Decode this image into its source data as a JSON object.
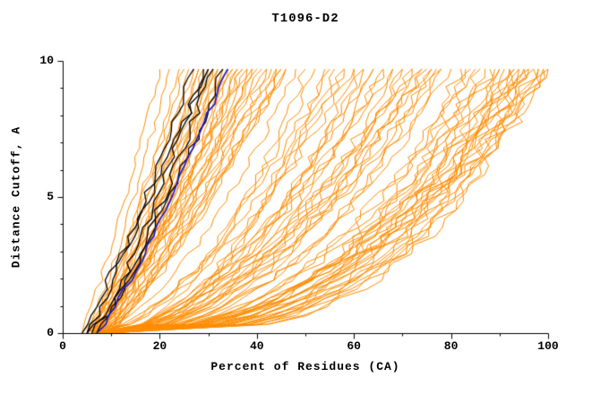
{
  "chart_data": {
    "type": "line",
    "title": "T1096-D2",
    "xlabel": "Percent of Residues (CA)",
    "ylabel": "Distance Cutoff, A",
    "xlim": [
      0,
      100
    ],
    "ylim": [
      0,
      10
    ],
    "xticks": [
      0,
      20,
      40,
      60,
      80,
      100
    ],
    "x_minor_step": 10,
    "yticks": [
      0,
      5,
      10
    ],
    "y_minor_step": 1,
    "y_curve_top": 9.7,
    "grid": false,
    "legend": "none",
    "axis_color": "#000000",
    "background_color": "#ffffff",
    "curve_format": [
      "x_percent_at_cutoff_0",
      "x_percent_at_cutoff_9.7",
      "shape_exponent"
    ],
    "groups": [
      {
        "name": "server-models",
        "color": "#FF8C00",
        "line_width": 1,
        "jitter": 1.0,
        "curves": [
          [
            4,
            20,
            0.9
          ],
          [
            5,
            22,
            0.85
          ],
          [
            5,
            24,
            0.8
          ],
          [
            6,
            25,
            0.9
          ],
          [
            4,
            26,
            0.75
          ],
          [
            6,
            27,
            0.95
          ],
          [
            5,
            28,
            0.7
          ],
          [
            7,
            28,
            0.85
          ],
          [
            6,
            29,
            0.9
          ],
          [
            5,
            30,
            0.8
          ],
          [
            7,
            30,
            0.75
          ],
          [
            6,
            31,
            0.9
          ],
          [
            8,
            31,
            0.85
          ],
          [
            5,
            32,
            0.7
          ],
          [
            7,
            32,
            0.95
          ],
          [
            6,
            33,
            0.8
          ],
          [
            8,
            33,
            0.75
          ],
          [
            5,
            34,
            0.9
          ],
          [
            7,
            34,
            0.85
          ],
          [
            6,
            35,
            0.7
          ],
          [
            8,
            35,
            0.95
          ],
          [
            7,
            36,
            0.8
          ],
          [
            5,
            36,
            0.75
          ],
          [
            9,
            37,
            0.9
          ],
          [
            6,
            37,
            0.85
          ],
          [
            8,
            38,
            0.7
          ],
          [
            7,
            38,
            0.95
          ],
          [
            6,
            39,
            0.8
          ],
          [
            9,
            39,
            0.75
          ],
          [
            7,
            40,
            0.9
          ],
          [
            8,
            41,
            0.85
          ],
          [
            6,
            42,
            0.7
          ],
          [
            9,
            42,
            0.95
          ],
          [
            7,
            43,
            0.8
          ],
          [
            8,
            44,
            0.75
          ],
          [
            6,
            44,
            0.9
          ],
          [
            9,
            45,
            0.85
          ],
          [
            7,
            45,
            0.7
          ],
          [
            8,
            46,
            0.8
          ],
          [
            10,
            46,
            0.9
          ],
          [
            6,
            48,
            0.6
          ],
          [
            8,
            50,
            0.5
          ],
          [
            7,
            52,
            0.55
          ],
          [
            9,
            54,
            0.45
          ],
          [
            6,
            55,
            0.6
          ],
          [
            8,
            56,
            0.5
          ],
          [
            10,
            58,
            0.55
          ],
          [
            7,
            58,
            0.65
          ],
          [
            9,
            60,
            0.45
          ],
          [
            6,
            60,
            0.6
          ],
          [
            8,
            62,
            0.5
          ],
          [
            10,
            62,
            0.55
          ],
          [
            7,
            64,
            0.4
          ],
          [
            9,
            64,
            0.6
          ],
          [
            6,
            66,
            0.5
          ],
          [
            8,
            66,
            0.55
          ],
          [
            10,
            68,
            0.45
          ],
          [
            7,
            68,
            0.6
          ],
          [
            9,
            70,
            0.5
          ],
          [
            8,
            70,
            0.4
          ],
          [
            6,
            72,
            0.55
          ],
          [
            10,
            72,
            0.6
          ],
          [
            7,
            74,
            0.45
          ],
          [
            9,
            74,
            0.5
          ],
          [
            8,
            75,
            0.55
          ],
          [
            6,
            76,
            0.4
          ],
          [
            10,
            76,
            0.6
          ],
          [
            7,
            77,
            0.5
          ],
          [
            9,
            78,
            0.45
          ],
          [
            8,
            78,
            0.55
          ],
          [
            7,
            80,
            0.45
          ],
          [
            9,
            82,
            0.35
          ],
          [
            6,
            83,
            0.4
          ],
          [
            8,
            84,
            0.3
          ],
          [
            10,
            85,
            0.45
          ],
          [
            7,
            86,
            0.35
          ],
          [
            9,
            87,
            0.4
          ],
          [
            6,
            88,
            0.3
          ],
          [
            8,
            89,
            0.45
          ],
          [
            10,
            90,
            0.35
          ],
          [
            7,
            90,
            0.4
          ],
          [
            9,
            91,
            0.28
          ],
          [
            6,
            92,
            0.42
          ],
          [
            8,
            92,
            0.32
          ],
          [
            10,
            93,
            0.45
          ],
          [
            7,
            93,
            0.3
          ],
          [
            9,
            94,
            0.4
          ],
          [
            6,
            94,
            0.35
          ],
          [
            8,
            95,
            0.28
          ],
          [
            10,
            95,
            0.45
          ],
          [
            7,
            96,
            0.33
          ],
          [
            9,
            96,
            0.4
          ],
          [
            6,
            97,
            0.3
          ],
          [
            8,
            97,
            0.45
          ],
          [
            10,
            98,
            0.35
          ],
          [
            7,
            98,
            0.42
          ],
          [
            9,
            99,
            0.3
          ],
          [
            6,
            99,
            0.38
          ],
          [
            8,
            100,
            0.33
          ],
          [
            9,
            100,
            0.45
          ]
        ]
      },
      {
        "name": "reference-models",
        "color": "#000000",
        "line_width": 1.3,
        "jitter": 1.3,
        "curves": [
          [
            5,
            27,
            0.9
          ],
          [
            6,
            29,
            0.8
          ],
          [
            4,
            30,
            0.95
          ],
          [
            7,
            31,
            0.85
          ],
          [
            5,
            33,
            0.75
          ]
        ]
      },
      {
        "name": "highlighted-model",
        "color": "#1A1ACD",
        "line_width": 1.7,
        "jitter": 0.7,
        "curves": [
          [
            7,
            34,
            0.85
          ]
        ]
      }
    ]
  },
  "layout_values": {
    "note": "GDT-style plot of distance cutoff vs percent of residues"
  }
}
